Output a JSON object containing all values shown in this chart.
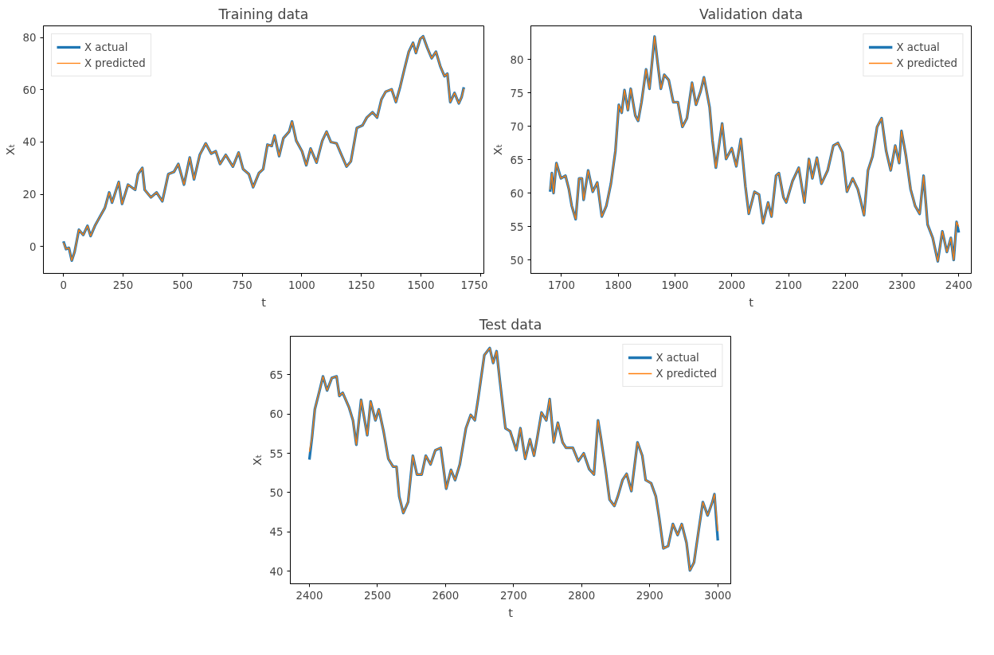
{
  "chart_data": [
    {
      "type": "line",
      "title": "Training data",
      "xlabel": "t",
      "ylabel": "Xₜ",
      "legend": "top left",
      "grid": false,
      "x": [
        0,
        11,
        23,
        35,
        47,
        65,
        83,
        101,
        114,
        132,
        150,
        174,
        192,
        204,
        232,
        246,
        271,
        301,
        313,
        331,
        341,
        367,
        391,
        415,
        440,
        464,
        482,
        506,
        530,
        548,
        572,
        597,
        620,
        639,
        657,
        681,
        711,
        735,
        754,
        778,
        796,
        820,
        838,
        856,
        874,
        886,
        905,
        923,
        947,
        959,
        977,
        1001,
        1019,
        1037,
        1062,
        1086,
        1104,
        1122,
        1146,
        1164,
        1188,
        1206,
        1231,
        1255,
        1273,
        1297,
        1316,
        1334,
        1352,
        1377,
        1395,
        1413,
        1430,
        1449,
        1467,
        1479,
        1497,
        1509,
        1527,
        1545,
        1563,
        1581,
        1599,
        1611,
        1623,
        1641,
        1659,
        1671,
        1680
      ],
      "series": [
        {
          "name": "X actual",
          "color": "#1f77b4",
          "values": [
            2,
            -1,
            -0.5,
            -5.4,
            -2,
            6.4,
            4.4,
            7.9,
            4,
            7.9,
            10.9,
            14.8,
            20.7,
            16.8,
            24.7,
            16.3,
            23.7,
            21.7,
            27.7,
            30.1,
            21.7,
            18.8,
            20.7,
            17.3,
            27.7,
            28.6,
            31.6,
            23.7,
            34.1,
            25.7,
            35.1,
            39.5,
            35.6,
            36.5,
            31.6,
            35.1,
            30.6,
            36,
            29.6,
            27.7,
            22.7,
            28.1,
            29.6,
            39,
            38.5,
            42.5,
            34.6,
            41.5,
            44,
            47.9,
            40.5,
            36.5,
            31.1,
            37.5,
            32.1,
            40.5,
            44,
            40,
            39.5,
            35.6,
            30.6,
            32.6,
            45.4,
            46.4,
            49.4,
            51.4,
            49.4,
            56.3,
            59.3,
            60.2,
            55.3,
            61.2,
            67.7,
            74.6,
            78,
            74.1,
            79.5,
            80.5,
            76,
            72.1,
            74.6,
            69.1,
            65.2,
            66.2,
            55.3,
            58.8,
            54.8,
            57.3,
            61
          ]
        },
        {
          "name": "X predicted",
          "color": "#ff7f0e",
          "values": [
            1.5,
            -1,
            -0.5,
            -5.4,
            -2,
            6.4,
            4.4,
            7.9,
            4,
            7.9,
            10.9,
            14.8,
            20.7,
            16.8,
            24.7,
            16.3,
            23.7,
            21.7,
            27.7,
            30.1,
            21.7,
            18.8,
            20.7,
            17.3,
            27.7,
            28.6,
            31.6,
            23.7,
            34.1,
            25.7,
            35.1,
            39.5,
            35.6,
            36.5,
            31.6,
            35.1,
            30.6,
            36,
            29.6,
            27.7,
            22.7,
            28.1,
            29.6,
            39,
            38.5,
            42.5,
            34.6,
            41.5,
            44,
            47.9,
            40.5,
            36.5,
            31.1,
            37.5,
            32.1,
            40.5,
            44,
            40,
            39.5,
            35.6,
            30.6,
            32.6,
            45.4,
            46.4,
            49.4,
            51.4,
            49.4,
            56.3,
            59.3,
            60.2,
            55.3,
            61.2,
            67.7,
            74.6,
            78,
            74.1,
            79.5,
            80.5,
            76,
            72.1,
            74.6,
            69.1,
            65.2,
            66.2,
            55.3,
            58.8,
            54.8,
            57.3,
            60.5
          ]
        }
      ],
      "xlim": [
        -84,
        1764
      ],
      "ylim": [
        -10.3,
        84.5
      ],
      "xticks": [
        0,
        250,
        500,
        750,
        1000,
        1250,
        1500,
        1750
      ],
      "yticks": [
        0,
        20,
        40,
        60,
        80
      ]
    },
    {
      "type": "line",
      "title": "Validation data",
      "xlabel": "t",
      "ylabel": "Xₜ",
      "legend": "top right",
      "grid": false,
      "x": [
        1680,
        1683,
        1686,
        1691,
        1699,
        1707,
        1713,
        1718,
        1725,
        1731,
        1736,
        1739,
        1747,
        1755,
        1763,
        1771,
        1779,
        1787,
        1795,
        1801,
        1806,
        1811,
        1817,
        1822,
        1830,
        1835,
        1841,
        1849,
        1855,
        1864,
        1869,
        1875,
        1881,
        1889,
        1897,
        1905,
        1913,
        1921,
        1930,
        1937,
        1945,
        1951,
        1961,
        1966,
        1972,
        1983,
        1990,
        2000,
        2008,
        2016,
        2024,
        2030,
        2040,
        2048,
        2055,
        2064,
        2070,
        2078,
        2083,
        2091,
        2096,
        2107,
        2118,
        2128,
        2136,
        2142,
        2150,
        2158,
        2169,
        2179,
        2187,
        2195,
        2203,
        2213,
        2222,
        2227,
        2233,
        2240,
        2248,
        2256,
        2264,
        2272,
        2280,
        2288,
        2295,
        2299,
        2307,
        2315,
        2323,
        2331,
        2338,
        2345,
        2354,
        2363,
        2371,
        2379,
        2386,
        2391,
        2396,
        2400
      ],
      "series": [
        {
          "name": "X actual",
          "color": "#1f77b4",
          "values": [
            60.2,
            63,
            60,
            64.5,
            62.2,
            62.6,
            60.6,
            58.1,
            56.1,
            62.2,
            62.2,
            59,
            63.4,
            60.2,
            61.6,
            56.5,
            58.1,
            61.4,
            66.3,
            73.2,
            72,
            75.4,
            72.4,
            75.6,
            71.6,
            70.8,
            73.6,
            78.5,
            75.6,
            83.4,
            79.7,
            75.6,
            77.7,
            76.9,
            73.6,
            73.6,
            69.9,
            71.2,
            76.5,
            73.2,
            75.2,
            77.3,
            72.8,
            67.9,
            63.8,
            70.4,
            65.1,
            66.7,
            64,
            68.1,
            61,
            56.9,
            60.2,
            59.8,
            55.5,
            58.6,
            56.5,
            62.6,
            63,
            59.4,
            58.6,
            61.8,
            63.8,
            58.6,
            65.1,
            62.2,
            65.3,
            61.4,
            63.4,
            67.1,
            67.5,
            66.1,
            60.2,
            62.2,
            60.6,
            58.9,
            56.7,
            63.4,
            65.5,
            69.9,
            71.2,
            66.3,
            63.4,
            67.1,
            64.5,
            69.3,
            65.5,
            60.6,
            58.1,
            56.9,
            62.6,
            55.3,
            53.3,
            49.8,
            54.3,
            51.2,
            53.3,
            50,
            55.7,
            54.1
          ]
        },
        {
          "name": "X predicted",
          "color": "#ff7f0e",
          "values": [
            60.5,
            63,
            60,
            64.5,
            62.2,
            62.6,
            60.6,
            58.1,
            56.1,
            62.2,
            62.2,
            59,
            63.4,
            60.2,
            61.6,
            56.5,
            58.1,
            61.4,
            66.3,
            73.2,
            72,
            75.4,
            72.4,
            75.6,
            71.6,
            70.8,
            73.6,
            78.5,
            75.6,
            83.4,
            79.7,
            75.6,
            77.7,
            76.9,
            73.6,
            73.6,
            69.9,
            71.2,
            76.5,
            73.2,
            75.2,
            77.3,
            72.8,
            67.9,
            63.8,
            70.4,
            65.1,
            66.7,
            64,
            68.1,
            61,
            56.9,
            60.2,
            59.8,
            55.5,
            58.6,
            56.5,
            62.6,
            63,
            59.4,
            58.6,
            61.8,
            63.8,
            58.6,
            65.1,
            62.2,
            65.3,
            61.4,
            63.4,
            67.1,
            67.5,
            66.1,
            60.2,
            62.2,
            60.6,
            58.9,
            56.7,
            63.4,
            65.5,
            69.9,
            71.2,
            66.3,
            63.4,
            67.1,
            64.5,
            69.3,
            65.5,
            60.6,
            58.1,
            56.9,
            62.6,
            55.3,
            53.3,
            49.8,
            54.3,
            51.2,
            53.3,
            50,
            55.7,
            55
          ]
        }
      ],
      "xlim": [
        1646,
        2422
      ],
      "ylim": [
        48,
        85
      ],
      "xticks": [
        1700,
        1800,
        1900,
        2000,
        2100,
        2200,
        2300,
        2400
      ],
      "yticks": [
        50,
        55,
        60,
        65,
        70,
        75,
        80
      ]
    },
    {
      "type": "line",
      "title": "Test data",
      "xlabel": "t",
      "ylabel": "Xₜ",
      "legend": "top right",
      "grid": false,
      "x": [
        2400,
        2404,
        2408,
        2415,
        2420,
        2426,
        2433,
        2440,
        2444,
        2449,
        2458,
        2464,
        2469,
        2476,
        2485,
        2490,
        2497,
        2502,
        2509,
        2516,
        2523,
        2528,
        2532,
        2538,
        2545,
        2552,
        2558,
        2565,
        2571,
        2578,
        2585,
        2593,
        2601,
        2608,
        2614,
        2621,
        2630,
        2637,
        2643,
        2648,
        2657,
        2665,
        2670,
        2675,
        2680,
        2688,
        2695,
        2704,
        2710,
        2717,
        2724,
        2730,
        2735,
        2741,
        2748,
        2753,
        2759,
        2765,
        2772,
        2777,
        2787,
        2795,
        2803,
        2811,
        2818,
        2824,
        2828,
        2835,
        2841,
        2848,
        2853,
        2860,
        2866,
        2873,
        2882,
        2889,
        2894,
        2902,
        2909,
        2914,
        2920,
        2927,
        2934,
        2941,
        2947,
        2954,
        2959,
        2965,
        2972,
        2978,
        2985,
        2992,
        2995,
        3000
      ],
      "series": [
        {
          "name": "X actual",
          "color": "#1f77b4",
          "values": [
            54.2,
            57.1,
            60.6,
            63,
            64.8,
            63,
            64.6,
            64.8,
            62.3,
            62.7,
            60.9,
            59.2,
            56.1,
            61.8,
            57.3,
            61.6,
            59.2,
            60.6,
            57.8,
            54.3,
            53.3,
            53.3,
            49.5,
            47.4,
            48.8,
            54.7,
            52.3,
            52.3,
            54.7,
            53.6,
            55.4,
            55.7,
            50.5,
            52.9,
            51.6,
            53.6,
            58.2,
            59.9,
            59.2,
            62,
            67.5,
            68.4,
            66.5,
            68,
            64.1,
            58.2,
            57.8,
            55.4,
            58.2,
            54.3,
            56.8,
            54.7,
            57.1,
            60.2,
            59.2,
            61.9,
            56.4,
            58.9,
            56.4,
            55.7,
            55.7,
            54,
            55,
            53,
            52.3,
            59.2,
            57.1,
            53,
            49.1,
            48.3,
            49.5,
            51.6,
            52.4,
            50.2,
            56.4,
            54.7,
            51.6,
            51.2,
            49.5,
            46.7,
            42.9,
            43.2,
            46,
            44.6,
            46,
            43.6,
            40.1,
            41.1,
            45.3,
            48.8,
            47.1,
            48.8,
            49.8,
            43.9
          ]
        },
        {
          "name": "X predicted",
          "color": "#ff7f0e",
          "values": [
            55.2,
            57.1,
            60.6,
            63,
            64.8,
            63,
            64.6,
            64.8,
            62.3,
            62.7,
            60.9,
            59.2,
            56.1,
            61.8,
            57.3,
            61.6,
            59.2,
            60.6,
            57.8,
            54.3,
            53.3,
            53.3,
            49.5,
            47.4,
            48.8,
            54.7,
            52.3,
            52.3,
            54.7,
            53.6,
            55.4,
            55.7,
            50.5,
            52.9,
            51.6,
            53.6,
            58.2,
            59.9,
            59.2,
            62,
            67.5,
            68.4,
            66.5,
            68,
            64.1,
            58.2,
            57.8,
            55.4,
            58.2,
            54.3,
            56.8,
            54.7,
            57.1,
            60.2,
            59.2,
            61.9,
            56.4,
            58.9,
            56.4,
            55.7,
            55.7,
            54,
            55,
            53,
            52.3,
            59.2,
            57.1,
            53,
            49.1,
            48.3,
            49.5,
            51.6,
            52.4,
            50.2,
            56.4,
            54.7,
            51.6,
            51.2,
            49.5,
            46.7,
            42.9,
            43.2,
            46,
            44.6,
            46,
            43.6,
            40.1,
            41.1,
            45.3,
            48.8,
            47.1,
            48.8,
            49.8,
            45.1
          ]
        }
      ],
      "xlim": [
        2372,
        3019
      ],
      "ylim": [
        38.4,
        69.9
      ],
      "xticks": [
        2400,
        2500,
        2600,
        2700,
        2800,
        2900,
        3000
      ],
      "yticks": [
        40,
        45,
        50,
        55,
        60,
        65
      ]
    }
  ]
}
